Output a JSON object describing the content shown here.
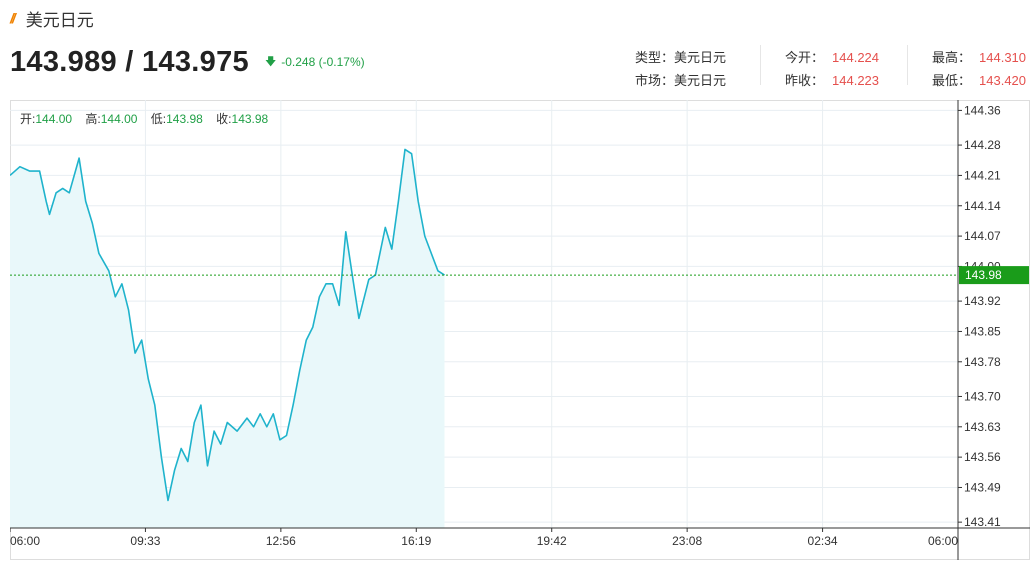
{
  "header": {
    "title": "美元日元",
    "price": "143.989 / 143.975",
    "change": "-0.248 (-0.17%)",
    "change_direction": "down"
  },
  "stats": {
    "type_label": "类型：",
    "type_value": "美元日元",
    "market_label": "市场：",
    "market_value": "美元日元",
    "open_label": "今开：",
    "open_value": "144.224",
    "prev_close_label": "昨收：",
    "prev_close_value": "144.223",
    "high_label": "最高：",
    "high_value": "144.310",
    "low_label": "最低：",
    "low_value": "143.420"
  },
  "ohlc": {
    "open_label": "开:",
    "open_value": "144.00",
    "high_label": "高:",
    "high_value": "144.00",
    "low_label": "低:",
    "low_value": "143.98",
    "close_label": "收:",
    "close_value": "143.98"
  },
  "colors": {
    "line": "#1fb3cc",
    "fill": "#e9f8fa",
    "current_line": "#1a9c1a",
    "current_badge": "#1a9c1a",
    "grid": "#e8eef2",
    "positive": "#e5504d",
    "negative": "#21a047",
    "title_mark": "#f08200"
  },
  "chart_data": {
    "type": "area",
    "current_price": 143.98,
    "current_label": "143.98",
    "x_ticks": [
      "06:00",
      "09:33",
      "12:56",
      "16:19",
      "19:42",
      "23:08",
      "02:34",
      "06:00"
    ],
    "y_ticks": [
      "144.36",
      "144.28",
      "144.21",
      "144.14",
      "144.07",
      "144.00",
      "143.92",
      "143.85",
      "143.78",
      "143.70",
      "143.63",
      "143.56",
      "143.49",
      "143.41"
    ],
    "ylim": [
      143.3965,
      144.384
    ],
    "grid": true,
    "points": [
      [
        "06:00",
        144.21
      ],
      [
        "06:15",
        144.23
      ],
      [
        "06:30",
        144.22
      ],
      [
        "06:45",
        144.22
      ],
      [
        "06:55",
        144.15
      ],
      [
        "07:00",
        144.12
      ],
      [
        "07:10",
        144.17
      ],
      [
        "07:20",
        144.18
      ],
      [
        "07:30",
        144.17
      ],
      [
        "07:45",
        144.25
      ],
      [
        "07:55",
        144.15
      ],
      [
        "08:05",
        144.1
      ],
      [
        "08:15",
        144.03
      ],
      [
        "08:30",
        143.99
      ],
      [
        "08:40",
        143.93
      ],
      [
        "08:50",
        143.96
      ],
      [
        "09:00",
        143.9
      ],
      [
        "09:10",
        143.8
      ],
      [
        "09:20",
        143.83
      ],
      [
        "09:30",
        143.74
      ],
      [
        "09:40",
        143.68
      ],
      [
        "09:50",
        143.56
      ],
      [
        "10:00",
        143.46
      ],
      [
        "10:10",
        143.53
      ],
      [
        "10:20",
        143.58
      ],
      [
        "10:30",
        143.55
      ],
      [
        "10:40",
        143.64
      ],
      [
        "10:50",
        143.68
      ],
      [
        "11:00",
        143.54
      ],
      [
        "11:10",
        143.62
      ],
      [
        "11:20",
        143.59
      ],
      [
        "11:30",
        143.64
      ],
      [
        "11:45",
        143.62
      ],
      [
        "12:00",
        143.65
      ],
      [
        "12:10",
        143.63
      ],
      [
        "12:20",
        143.66
      ],
      [
        "12:30",
        143.63
      ],
      [
        "12:40",
        143.66
      ],
      [
        "12:50",
        143.6
      ],
      [
        "13:00",
        143.61
      ],
      [
        "13:10",
        143.68
      ],
      [
        "13:20",
        143.76
      ],
      [
        "13:30",
        143.83
      ],
      [
        "13:40",
        143.86
      ],
      [
        "13:50",
        143.93
      ],
      [
        "14:00",
        143.96
      ],
      [
        "14:10",
        143.96
      ],
      [
        "14:20",
        143.91
      ],
      [
        "14:30",
        144.08
      ],
      [
        "14:40",
        143.98
      ],
      [
        "14:50",
        143.88
      ],
      [
        "15:00",
        143.94
      ],
      [
        "15:05",
        143.97
      ],
      [
        "15:15",
        143.98
      ],
      [
        "15:30",
        144.09
      ],
      [
        "15:40",
        144.04
      ],
      [
        "15:50",
        144.15
      ],
      [
        "16:00",
        144.27
      ],
      [
        "16:10",
        144.26
      ],
      [
        "16:20",
        144.15
      ],
      [
        "16:30",
        144.07
      ],
      [
        "16:40",
        144.03
      ],
      [
        "16:50",
        143.99
      ],
      [
        "17:00",
        143.98
      ]
    ]
  }
}
